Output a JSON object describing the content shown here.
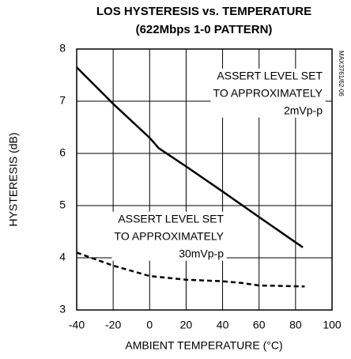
{
  "chart_data": {
    "type": "line",
    "title": [
      "LOS HYSTERESIS vs. TEMPERATURE",
      "(622Mbps 1-0 PATTERN)"
    ],
    "x_label": "AMBIENT TEMPERATURE (°C)",
    "y_label": "HYSTERESIS (dB)",
    "side_label": "MAX3761/62-06",
    "xlim": [
      -40,
      100
    ],
    "xticks": [
      -40,
      -20,
      0,
      20,
      40,
      60,
      80,
      100
    ],
    "ylim": [
      3,
      8
    ],
    "yticks": [
      3,
      4,
      5,
      6,
      7,
      8
    ],
    "grid": true,
    "series": [
      {
        "color": "#000000",
        "dashed": false,
        "x": [
          -40,
          -20,
          0,
          5,
          20,
          40,
          60,
          84
        ],
        "values": [
          7.65,
          6.95,
          6.3,
          6.1,
          5.75,
          5.27,
          4.78,
          4.2
        ]
      },
      {
        "color": "#000000",
        "dashed": true,
        "x": [
          -40,
          -20,
          0,
          20,
          40,
          50,
          60,
          85
        ],
        "values": [
          4.1,
          3.85,
          3.65,
          3.58,
          3.55,
          3.52,
          3.47,
          3.45
        ]
      }
    ],
    "annotations": [
      {
        "lines": [
          "ASSERT LEVEL SET",
          "TO APPROXIMATELY",
          "2mVp-p"
        ]
      },
      {
        "lines": [
          "ASSERT LEVEL SET",
          "TO APPROXIMATELY",
          "30mVp-p"
        ]
      }
    ]
  }
}
